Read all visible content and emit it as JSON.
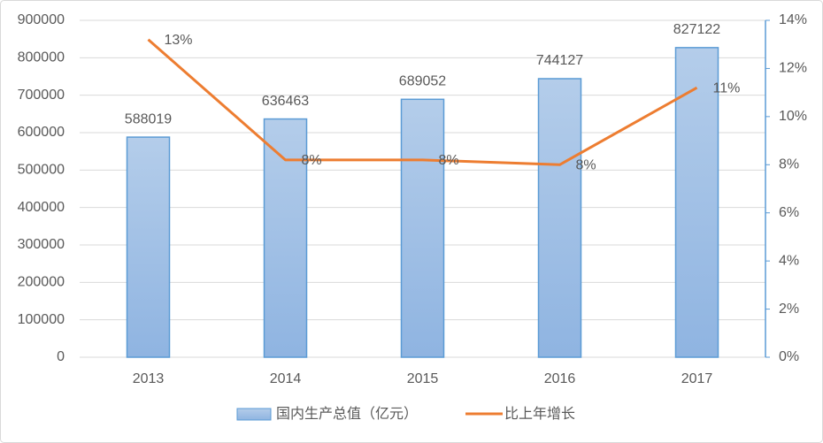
{
  "chart_data": {
    "type": "combo",
    "categories": [
      "2013",
      "2014",
      "2015",
      "2016",
      "2017"
    ],
    "series": [
      {
        "name": "国内生产总值（亿元）",
        "type": "bar",
        "color": "#5b9bd5",
        "values": [
          588019,
          636463,
          689052,
          744127,
          827122
        ]
      },
      {
        "name": "比上年增长",
        "type": "line",
        "axis": "y2",
        "color": "#ed7d31",
        "values": [
          13.2,
          8.2,
          8.2,
          8.0,
          11.2
        ],
        "value_labels": [
          "13%",
          "8%",
          "8%",
          "8%",
          "11%"
        ]
      }
    ],
    "ylim": [
      0,
      900000
    ],
    "yticks": [
      0,
      100000,
      200000,
      300000,
      400000,
      500000,
      600000,
      700000,
      800000,
      900000
    ],
    "y2lim": [
      0,
      14
    ],
    "y2ticks": [
      {
        "value": 0,
        "label": "0%"
      },
      {
        "value": 2,
        "label": "2%"
      },
      {
        "value": 4,
        "label": "4%"
      },
      {
        "value": 6,
        "label": "6%"
      },
      {
        "value": 8,
        "label": "8%"
      },
      {
        "value": 10,
        "label": "10%"
      },
      {
        "value": 12,
        "label": "12%"
      },
      {
        "value": 14,
        "label": "14%"
      }
    ],
    "grid": true,
    "legend": "bottom"
  }
}
